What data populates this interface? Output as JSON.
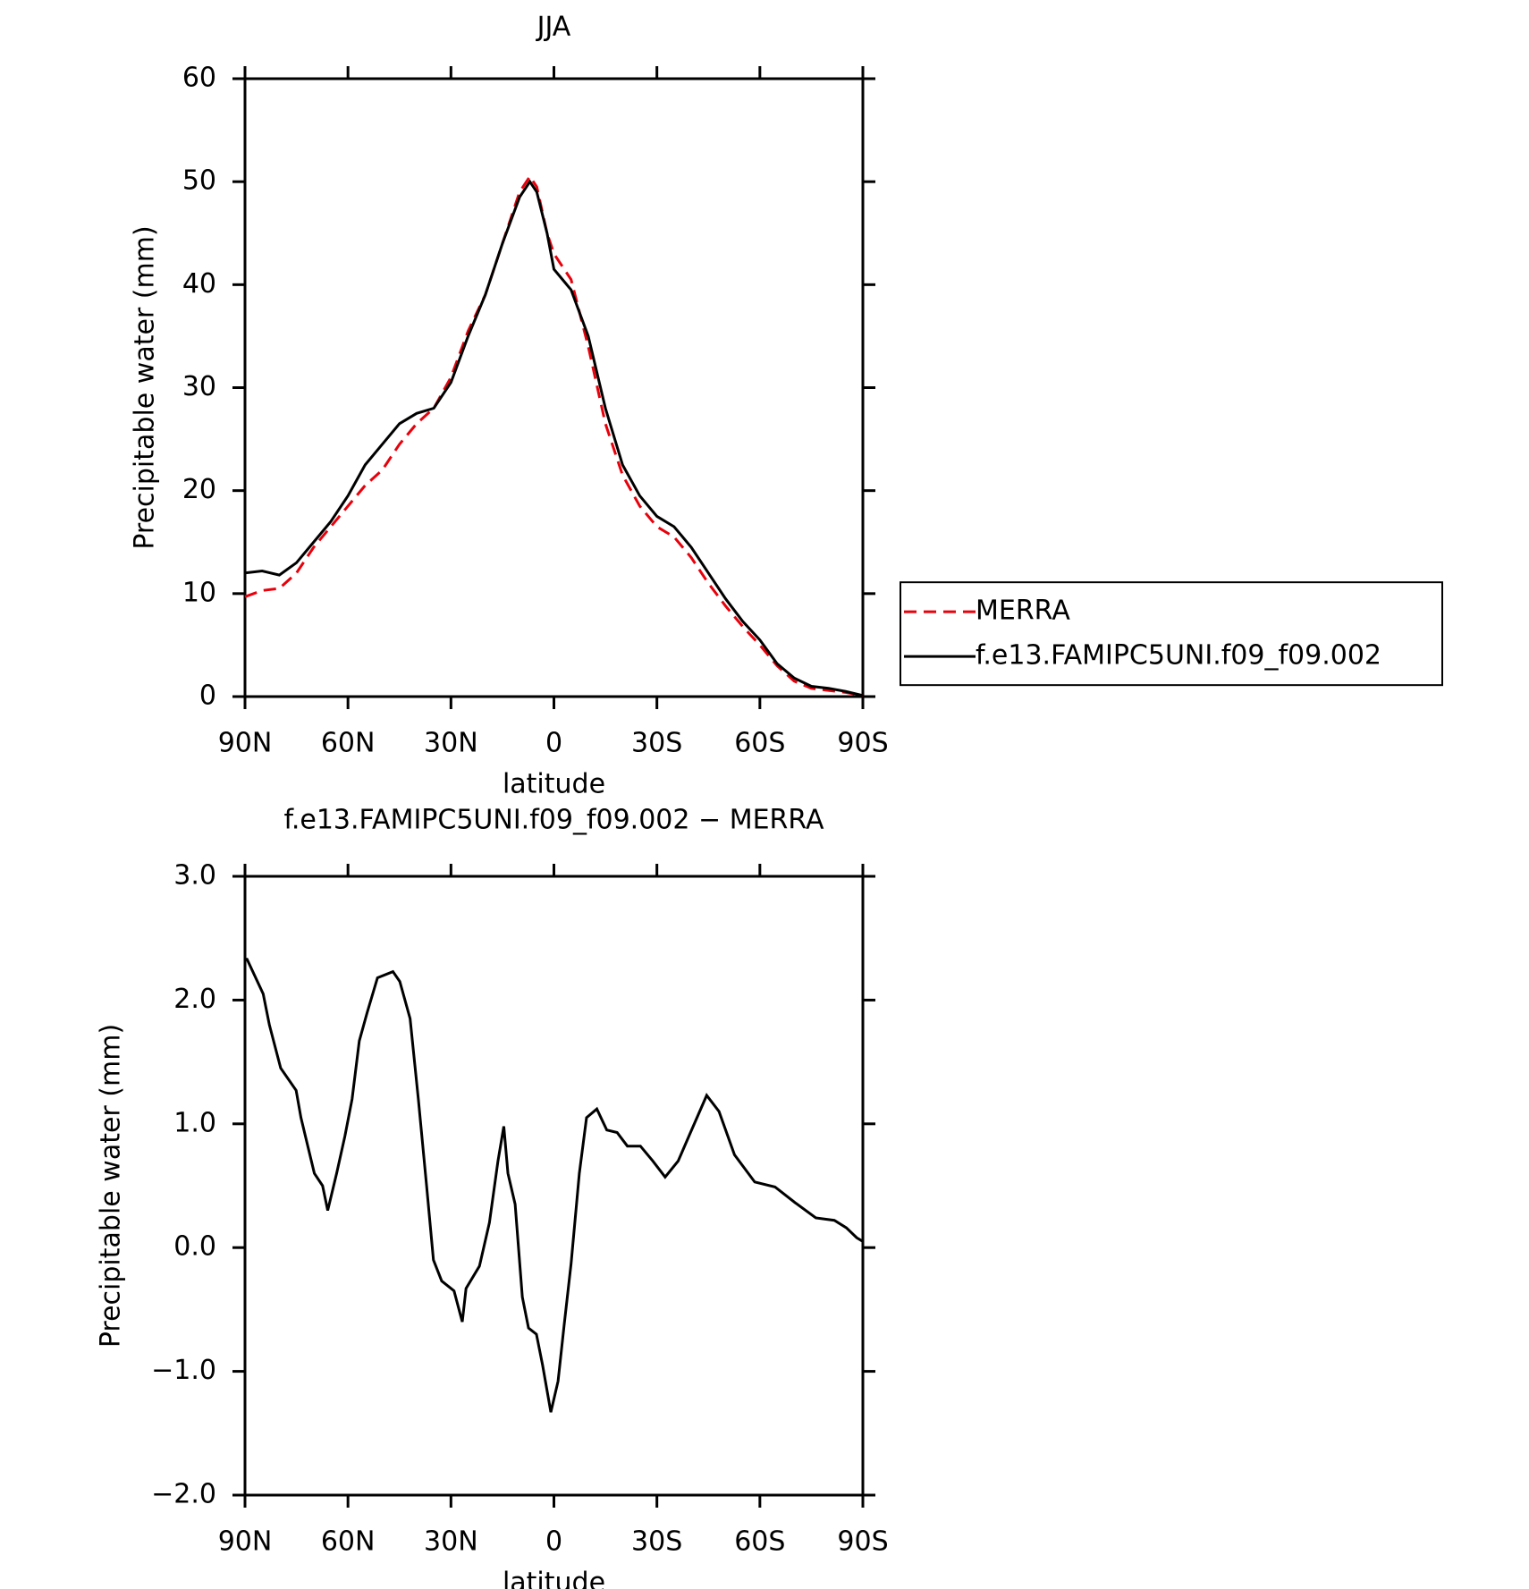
{
  "chart_data": [
    {
      "type": "line",
      "title": "JJA",
      "x_label": "latitude",
      "y_label": "Precipitable water (mm)",
      "x": [
        90,
        85,
        80,
        75,
        70,
        65,
        60,
        55,
        50,
        45,
        40,
        35,
        30,
        25,
        20,
        15,
        10,
        7,
        5,
        2,
        0,
        -5,
        -10,
        -15,
        -20,
        -25,
        -30,
        -35,
        -40,
        -45,
        -50,
        -55,
        -60,
        -65,
        -70,
        -75,
        -80,
        -85,
        -90
      ],
      "series": [
        {
          "name": "MERRA",
          "color": "#e8000b",
          "style": "dashed",
          "values": [
            9.7,
            10.3,
            10.5,
            12,
            14.5,
            16.5,
            18.5,
            20.5,
            22,
            24.5,
            26.5,
            28,
            31,
            35.5,
            39,
            44,
            49,
            50.5,
            49.5,
            45,
            43,
            40.5,
            34,
            26.5,
            21.5,
            18.5,
            16.5,
            15.5,
            13.5,
            11,
            8.8,
            6.8,
            5,
            3,
            1.5,
            0.8,
            0.6,
            0.4,
            0.1
          ]
        },
        {
          "name": "f.e13.FAMIPC5UNI.f09_f09.002",
          "color": "#000000",
          "style": "solid",
          "values": [
            12,
            12.2,
            11.8,
            13,
            15,
            17,
            19.5,
            22.5,
            24.5,
            26.5,
            27.5,
            28,
            30.5,
            35,
            39,
            44,
            48.5,
            50,
            49,
            45,
            41.5,
            39.5,
            35,
            28,
            22.5,
            19.5,
            17.5,
            16.5,
            14.5,
            12,
            9.5,
            7.3,
            5.5,
            3.2,
            1.8,
            1,
            0.8,
            0.5,
            0.1
          ]
        }
      ],
      "xlim": [
        90,
        -90
      ],
      "xticks": [
        {
          "value": 90,
          "label": "90N"
        },
        {
          "value": 60,
          "label": "60N"
        },
        {
          "value": 30,
          "label": "30N"
        },
        0,
        {
          "value": -30,
          "label": "30S"
        },
        {
          "value": -60,
          "label": "60S"
        },
        {
          "value": -90,
          "label": "90S"
        }
      ],
      "ylim": [
        0,
        60
      ],
      "yticks": [
        0,
        10,
        20,
        30,
        40,
        50,
        60
      ],
      "grid": false,
      "legend": "right"
    },
    {
      "type": "line",
      "title": "f.e13.FAMIPC5UNI.f09_f09.002 − MERRA",
      "x_label": "latitude",
      "y_label": "Precipitable water (mm)",
      "x": [
        90,
        89.4,
        84.7,
        82.9,
        79.6,
        75.1,
        73.7,
        69.8,
        67.4,
        65.9,
        63.3,
        60.9,
        58.8,
        56.7,
        54.4,
        51.4,
        46.9,
        44.9,
        41.9,
        39.5,
        37.1,
        35.1,
        32.7,
        29.1,
        26.7,
        25.6,
        21.7,
        18.8,
        16.3,
        14.6,
        13.4,
        11.3,
        9.2,
        7.4,
        5.1,
        3.3,
        0.9,
        -1.2,
        -3,
        -5,
        -7.4,
        -9.5,
        -12.5,
        -15.4,
        -18.4,
        -21.4,
        -25.2,
        -28.8,
        -32.4,
        -36.2,
        -40.1,
        -44.5,
        -48.1,
        -52.6,
        -58.5,
        -64.4,
        -70.4,
        -76.3,
        -81.7,
        -85.2,
        -88.2,
        -90
      ],
      "series": [
        {
          "color": "#000000",
          "style": "solid",
          "values": [
            2.33,
            2.33,
            2.05,
            1.8,
            1.45,
            1.27,
            1.05,
            0.6,
            0.5,
            0.3,
            0.6,
            0.9,
            1.2,
            1.67,
            1.9,
            2.18,
            2.23,
            2.15,
            1.85,
            1.2,
            0.5,
            -0.1,
            -0.27,
            -0.35,
            -0.6,
            -0.33,
            -0.15,
            0.2,
            0.7,
            0.98,
            0.6,
            0.35,
            -0.4,
            -0.65,
            -0.7,
            -0.95,
            -1.33,
            -1.08,
            -0.62,
            -0.13,
            0.6,
            1.05,
            1.12,
            0.95,
            0.93,
            0.82,
            0.82,
            0.7,
            0.57,
            0.7,
            0.95,
            1.23,
            1.1,
            0.75,
            0.53,
            0.49,
            0.36,
            0.24,
            0.22,
            0.16,
            0.08,
            0.05
          ]
        }
      ],
      "xlim": [
        90,
        -90
      ],
      "xticks": [
        {
          "value": 90,
          "label": "90N"
        },
        {
          "value": 60,
          "label": "60N"
        },
        {
          "value": 30,
          "label": "30N"
        },
        0,
        {
          "value": -30,
          "label": "30S"
        },
        {
          "value": -60,
          "label": "60S"
        },
        {
          "value": -90,
          "label": "90S"
        }
      ],
      "ylim": [
        -2,
        3
      ],
      "yticks": [
        {
          "value": -2,
          "label": "−2.0"
        },
        {
          "value": -1,
          "label": "−1.0"
        },
        {
          "value": 0,
          "label": "0.0"
        },
        {
          "value": 1,
          "label": "1.0"
        },
        {
          "value": 2,
          "label": "2.0"
        },
        {
          "value": 3,
          "label": "3.0"
        }
      ],
      "grid": false
    }
  ]
}
